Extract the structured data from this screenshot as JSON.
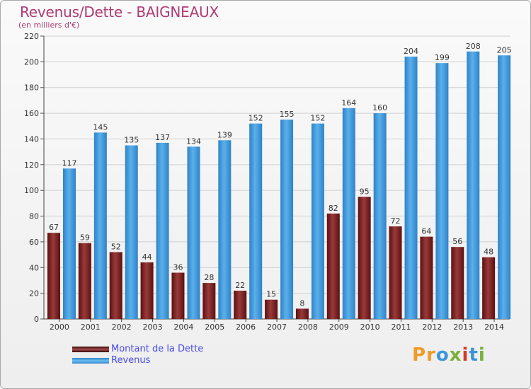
{
  "chart_data": {
    "type": "bar",
    "title": "Revenus/Dette - BAIGNEAUX",
    "subtitle": "(en milliers d'€)",
    "categories": [
      "2000",
      "2001",
      "2002",
      "2003",
      "2004",
      "2005",
      "2006",
      "2007",
      "2008",
      "2009",
      "2010",
      "2011",
      "2012",
      "2013",
      "2014"
    ],
    "series": [
      {
        "name": "Montant de la Dette",
        "color": "#7a1a1a",
        "values": [
          67,
          59,
          52,
          44,
          36,
          28,
          22,
          15,
          8,
          82,
          95,
          72,
          64,
          56,
          48
        ]
      },
      {
        "name": "Revenus",
        "color": "#3b95db",
        "values": [
          117,
          145,
          135,
          137,
          134,
          139,
          152,
          155,
          152,
          164,
          160,
          204,
          199,
          208,
          205
        ]
      }
    ],
    "ylim": [
      0,
      220
    ],
    "yticks": [
      0,
      20,
      40,
      60,
      80,
      100,
      120,
      140,
      160,
      180,
      200,
      220
    ],
    "xlabel": "",
    "ylabel": "",
    "grid": true,
    "legend": "bottom-left"
  },
  "logo": {
    "text": "Proxiti",
    "colors": [
      "#f09a2a",
      "#3b95db",
      "#7ab03b",
      "#d23b2a"
    ]
  }
}
